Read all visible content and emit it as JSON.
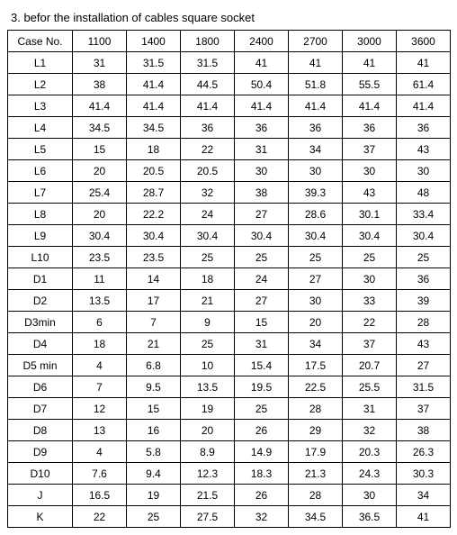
{
  "title": "3. befor the installation of cables square socket",
  "table": {
    "columns": [
      "Case No.",
      "1100",
      "1400",
      "1800",
      "2400",
      "2700",
      "3000",
      "3600"
    ],
    "rows": [
      [
        "L1",
        "31",
        "31.5",
        "31.5",
        "41",
        "41",
        "41",
        "41"
      ],
      [
        "L2",
        "38",
        "41.4",
        "44.5",
        "50.4",
        "51.8",
        "55.5",
        "61.4"
      ],
      [
        "L3",
        "41.4",
        "41.4",
        "41.4",
        "41.4",
        "41.4",
        "41.4",
        "41.4"
      ],
      [
        "L4",
        "34.5",
        "34.5",
        "36",
        "36",
        "36",
        "36",
        "36"
      ],
      [
        "L5",
        "15",
        "18",
        "22",
        "31",
        "34",
        "37",
        "43"
      ],
      [
        "L6",
        "20",
        "20.5",
        "20.5",
        "30",
        "30",
        "30",
        "30"
      ],
      [
        "L7",
        "25.4",
        "28.7",
        "32",
        "38",
        "39.3",
        "43",
        "48"
      ],
      [
        "L8",
        "20",
        "22.2",
        "24",
        "27",
        "28.6",
        "30.1",
        "33.4"
      ],
      [
        "L9",
        "30.4",
        "30.4",
        "30.4",
        "30.4",
        "30.4",
        "30.4",
        "30.4"
      ],
      [
        "L10",
        "23.5",
        "23.5",
        "25",
        "25",
        "25",
        "25",
        "25"
      ],
      [
        "D1",
        "11",
        "14",
        "18",
        "24",
        "27",
        "30",
        "36"
      ],
      [
        "D2",
        "13.5",
        "17",
        "21",
        "27",
        "30",
        "33",
        "39"
      ],
      [
        "D3min",
        "6",
        "7",
        "9",
        "15",
        "20",
        "22",
        "28"
      ],
      [
        "D4",
        "18",
        "21",
        "25",
        "31",
        "34",
        "37",
        "43"
      ],
      [
        "D5 min",
        "4",
        "6.8",
        "10",
        "15.4",
        "17.5",
        "20.7",
        "27"
      ],
      [
        "D6",
        "7",
        "9.5",
        "13.5",
        "19.5",
        "22.5",
        "25.5",
        "31.5"
      ],
      [
        "D7",
        "12",
        "15",
        "19",
        "25",
        "28",
        "31",
        "37"
      ],
      [
        "D8",
        "13",
        "16",
        "20",
        "26",
        "29",
        "32",
        "38"
      ],
      [
        "D9",
        "4",
        "5.8",
        "8.9",
        "14.9",
        "17.9",
        "20.3",
        "26.3"
      ],
      [
        "D10",
        "7.6",
        "9.4",
        "12.3",
        "18.3",
        "21.3",
        "24.3",
        "30.3"
      ],
      [
        "J",
        "16.5",
        "19",
        "21.5",
        "26",
        "28",
        "30",
        "34"
      ],
      [
        "K",
        "22",
        "25",
        "27.5",
        "32",
        "34.5",
        "36.5",
        "41"
      ]
    ]
  }
}
